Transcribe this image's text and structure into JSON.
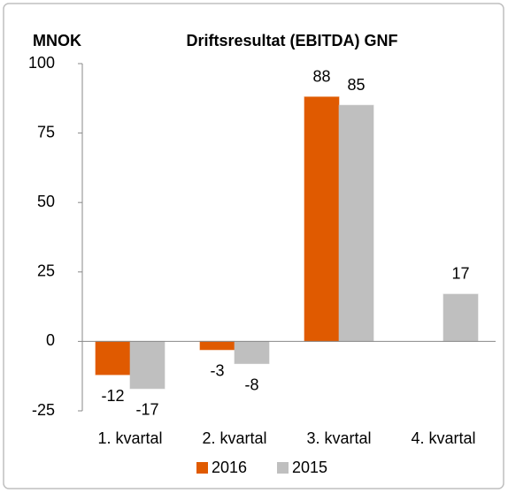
{
  "chart_data": {
    "type": "bar",
    "title": "Driftsresultat (EBITDA) GNF",
    "y_label": "MNOK",
    "categories": [
      "1. kvartal",
      "2. kvartal",
      "3. kvartal",
      "4. kvartal"
    ],
    "series": [
      {
        "name": "2016",
        "color": "#e05a00",
        "values": [
          -12,
          -3,
          88,
          null
        ]
      },
      {
        "name": "2015",
        "color": "#bfbfbf",
        "values": [
          -17,
          -8,
          85,
          17
        ]
      }
    ],
    "ylim": [
      -25,
      100
    ],
    "yticks": [
      -25,
      0,
      25,
      50,
      75,
      100
    ],
    "grid": false,
    "legend": "bottom"
  }
}
